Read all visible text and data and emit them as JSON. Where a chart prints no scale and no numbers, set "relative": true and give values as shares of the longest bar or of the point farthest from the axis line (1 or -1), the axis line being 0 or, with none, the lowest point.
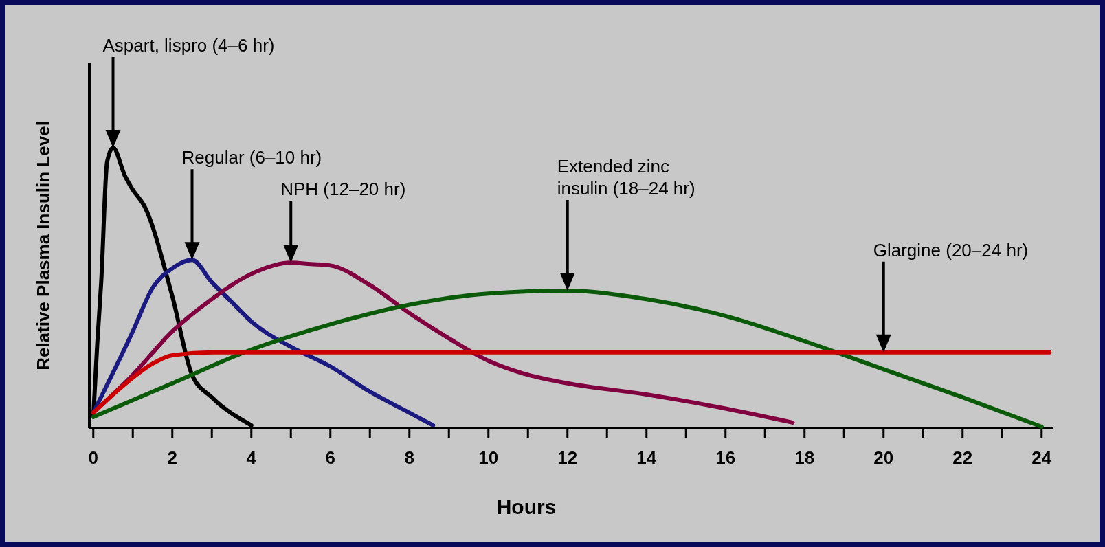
{
  "chart_data": {
    "type": "line",
    "relative": true,
    "xlabel": "Hours",
    "ylabel": "Relative Plasma Insulin Level",
    "xlim": [
      -0.1,
      24.3
    ],
    "xticks": [
      0,
      {
        "value": 1,
        "label": null
      },
      2,
      {
        "value": 3,
        "label": null
      },
      4,
      {
        "value": 5,
        "label": null
      },
      6,
      {
        "value": 7,
        "label": null
      },
      8,
      {
        "value": 9,
        "label": null
      },
      10,
      {
        "value": 11,
        "label": null
      },
      12,
      {
        "value": 13,
        "label": null
      },
      14,
      {
        "value": 15,
        "label": null
      },
      16,
      {
        "value": 17,
        "label": null
      },
      18,
      {
        "value": 19,
        "label": null
      },
      20,
      {
        "value": 21,
        "label": null
      },
      22,
      {
        "value": 23,
        "label": null
      },
      24
    ],
    "grid": false,
    "marker": "none",
    "line_style": "solid",
    "series": [
      {
        "color": "#000000",
        "x": [
          0,
          0.1,
          0.2,
          0.35,
          0.5,
          0.8,
          1,
          1.3,
          2,
          2.5,
          3,
          4
        ],
        "values": [
          0.04,
          0.3,
          0.52,
          0.95,
          1,
          0.9,
          0.85,
          0.79,
          0.47,
          0.19,
          0.11,
          0.01
        ]
      },
      {
        "color": "#1a1a80",
        "x": [
          0,
          1,
          1.5,
          2,
          2.5,
          3,
          3.5,
          4,
          5,
          6,
          7,
          8,
          8.6
        ],
        "values": [
          0.055,
          0.345,
          0.5,
          0.57,
          0.6,
          0.52,
          0.45,
          0.38,
          0.29,
          0.22,
          0.13,
          0.055,
          0.01
        ]
      },
      {
        "color": "#800040",
        "x": [
          0,
          1,
          2,
          3,
          4,
          5,
          5.5,
          6,
          7,
          8,
          9,
          10,
          11,
          12,
          14,
          16,
          17.7
        ],
        "values": [
          0.055,
          0.19,
          0.345,
          0.46,
          0.55,
          0.59,
          0.585,
          0.58,
          0.51,
          0.41,
          0.32,
          0.24,
          0.19,
          0.16,
          0.12,
          0.07,
          0.02
        ]
      },
      {
        "color": "#0a5a0a",
        "x": [
          0,
          2,
          4,
          6,
          8,
          10,
          12,
          14,
          16,
          18,
          20,
          22,
          24
        ],
        "values": [
          0.04,
          0.16,
          0.28,
          0.37,
          0.44,
          0.48,
          0.49,
          0.46,
          0.4,
          0.31,
          0.21,
          0.11,
          0.005
        ]
      },
      {
        "color": "#cc0000",
        "x": [
          0,
          0.5,
          1,
          1.5,
          2,
          3,
          20,
          24.2
        ],
        "values": [
          0.055,
          0.12,
          0.18,
          0.23,
          0.26,
          0.27,
          0.27,
          0.27
        ]
      }
    ],
    "annotations": [
      "Aspart, lispro (4–6 hr)",
      "Regular (6–10 hr)",
      "NPH (12–20 hr)",
      "Extended zinc\ninsulin (18–24 hr)",
      "Glargine (20–24 hr)"
    ]
  }
}
